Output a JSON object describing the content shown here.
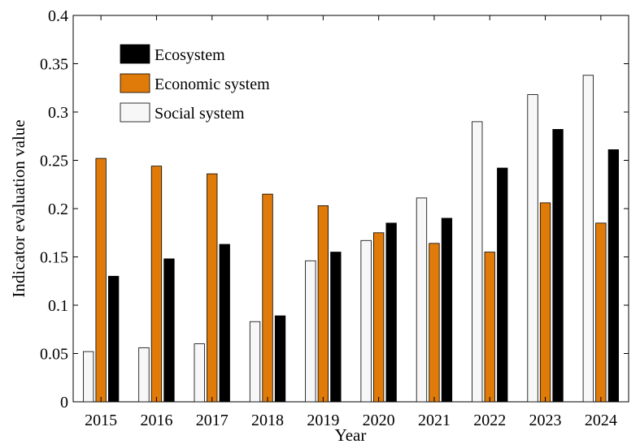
{
  "chart_data": {
    "type": "bar",
    "xlabel": "Year",
    "ylabel": "Indicator evaluation value",
    "ylim": [
      0,
      0.4
    ],
    "yticks": [
      0,
      0.05,
      0.1,
      0.15,
      0.2,
      0.25,
      0.3,
      0.35,
      0.4
    ],
    "ytick_labels": [
      "0",
      "0.05",
      "0.1",
      "0.15",
      "0.2",
      "0.25",
      "0.3",
      "0.35",
      "0.4"
    ],
    "categories": [
      "2015",
      "2016",
      "2017",
      "2018",
      "2019",
      "2020",
      "2021",
      "2022",
      "2023",
      "2024"
    ],
    "series": [
      {
        "name": "Social system",
        "color": "#f7f7f7",
        "values": [
          0.052,
          0.056,
          0.06,
          0.083,
          0.146,
          0.167,
          0.211,
          0.29,
          0.318,
          0.338
        ]
      },
      {
        "name": "Economic system",
        "color": "#e07b0a",
        "values": [
          0.252,
          0.244,
          0.236,
          0.215,
          0.203,
          0.175,
          0.164,
          0.155,
          0.206,
          0.185
        ]
      },
      {
        "name": "Ecosystem",
        "color": "#000000",
        "values": [
          0.13,
          0.148,
          0.163,
          0.089,
          0.155,
          0.185,
          0.19,
          0.242,
          0.282,
          0.261
        ]
      }
    ],
    "legend": {
      "placement": "top-left",
      "order": [
        "Ecosystem",
        "Economic system",
        "Social system"
      ]
    },
    "grid": false
  }
}
